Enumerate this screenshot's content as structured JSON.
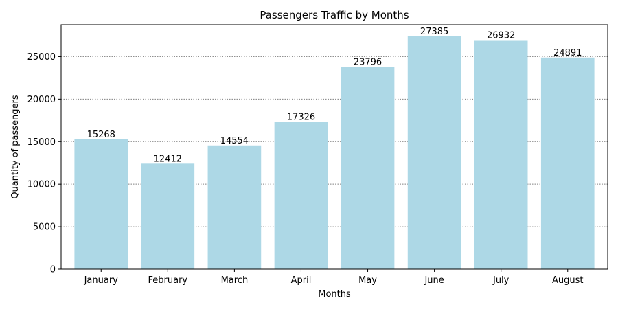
{
  "chart_data": {
    "type": "bar",
    "title": "Passengers Traffic by Months",
    "xlabel": "Months",
    "ylabel": "Quantity of passengers",
    "categories": [
      "January",
      "February",
      "March",
      "April",
      "May",
      "June",
      "July",
      "August"
    ],
    "values": [
      15268,
      12412,
      14554,
      17326,
      23796,
      27385,
      26932,
      24891
    ],
    "ylim": [
      0,
      28750
    ],
    "yticks": [
      0,
      5000,
      10000,
      15000,
      20000,
      25000
    ],
    "grid": {
      "axis": "y",
      "style": "dotted",
      "color": "#808080"
    },
    "bar_color": "#add8e6",
    "data_labels": true
  }
}
